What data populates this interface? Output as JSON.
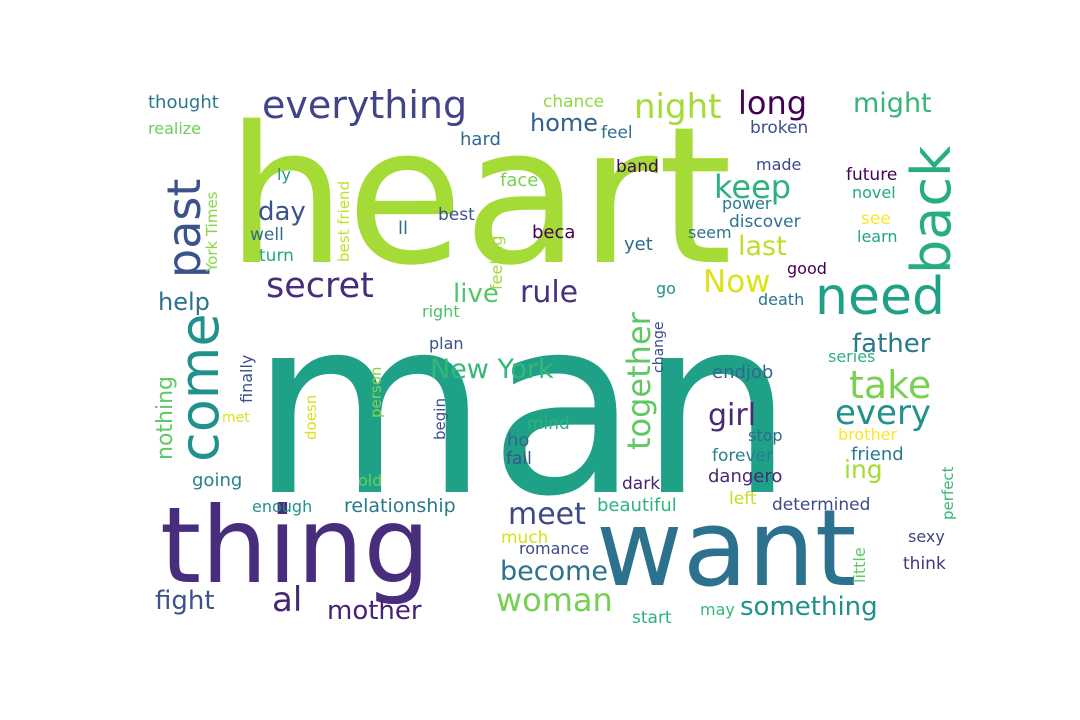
{
  "word_cloud": {
    "words": [
      {
        "text": "heart",
        "color": "#a5db36"
      },
      {
        "text": "man",
        "color": "#1fa187"
      },
      {
        "text": "thing",
        "color": "#472d7b"
      },
      {
        "text": "want",
        "color": "#2c728e"
      },
      {
        "text": "need",
        "color": "#1fa187"
      },
      {
        "text": "everything",
        "color": "#414487"
      },
      {
        "text": "past",
        "color": "#3b528b"
      },
      {
        "text": "come",
        "color": "#21918c"
      },
      {
        "text": "back",
        "color": "#27ad81"
      },
      {
        "text": "secret",
        "color": "#472d7b"
      },
      {
        "text": "night",
        "color": "#a5db36"
      },
      {
        "text": "long",
        "color": "#440154"
      },
      {
        "text": "might",
        "color": "#35b779"
      },
      {
        "text": "keep",
        "color": "#2db27d"
      },
      {
        "text": "take",
        "color": "#7ad151"
      },
      {
        "text": "every",
        "color": "#21918c"
      },
      {
        "text": "together",
        "color": "#5ec962"
      },
      {
        "text": "woman",
        "color": "#75d054"
      },
      {
        "text": "al",
        "color": "#482677"
      },
      {
        "text": "meet",
        "color": "#3e4989"
      },
      {
        "text": "become",
        "color": "#2c728e"
      },
      {
        "text": "something",
        "color": "#21918c"
      },
      {
        "text": "New York",
        "color": "#35b779"
      },
      {
        "text": "girl",
        "color": "#482878"
      },
      {
        "text": "rule",
        "color": "#46327e"
      },
      {
        "text": "Now",
        "color": "#dde318"
      },
      {
        "text": "father",
        "color": "#2a788e"
      },
      {
        "text": "mother",
        "color": "#482173"
      },
      {
        "text": "fight",
        "color": "#3b528b"
      },
      {
        "text": "home",
        "color": "#33638d"
      },
      {
        "text": "day",
        "color": "#3b528b"
      },
      {
        "text": "last",
        "color": "#bddf26"
      },
      {
        "text": "live",
        "color": "#52c569"
      },
      {
        "text": "help",
        "color": "#2c728e"
      },
      {
        "text": "nothing",
        "color": "#5ec962"
      },
      {
        "text": "ing",
        "color": "#a5db36"
      },
      {
        "text": "relationship",
        "color": "#2a788e"
      },
      {
        "text": "going",
        "color": "#26828e"
      },
      {
        "text": "friend",
        "color": "#2a788e"
      },
      {
        "text": "forever",
        "color": "#277f8e"
      },
      {
        "text": "dangero",
        "color": "#482878"
      },
      {
        "text": "beautiful",
        "color": "#2db27d"
      },
      {
        "text": "determined",
        "color": "#3e4989"
      },
      {
        "text": "thought",
        "color": "#2a788e"
      },
      {
        "text": "chance",
        "color": "#8fd744"
      },
      {
        "text": "realize",
        "color": "#6ccd5a"
      },
      {
        "text": "hard",
        "color": "#31688e"
      },
      {
        "text": "feel",
        "color": "#2e6e8e"
      },
      {
        "text": "broken",
        "color": "#3b528b"
      },
      {
        "text": "band",
        "color": "#450559"
      },
      {
        "text": "made",
        "color": "#3e4989"
      },
      {
        "text": "future",
        "color": "#440154"
      },
      {
        "text": "novel",
        "color": "#22a884"
      },
      {
        "text": "face",
        "color": "#75d054"
      },
      {
        "text": "power",
        "color": "#2a788e"
      },
      {
        "text": "discover",
        "color": "#2c728e"
      },
      {
        "text": "see",
        "color": "#fde725"
      },
      {
        "text": "learn",
        "color": "#20a386"
      },
      {
        "text": "seem",
        "color": "#2c728e"
      },
      {
        "text": "yet",
        "color": "#31688e"
      },
      {
        "text": "good",
        "color": "#440154"
      },
      {
        "text": "best",
        "color": "#3b528b"
      },
      {
        "text": "beca",
        "color": "#440154"
      },
      {
        "text": "ll",
        "color": "#2e6e8e"
      },
      {
        "text": "well",
        "color": "#31688e"
      },
      {
        "text": "turn",
        "color": "#22a884"
      },
      {
        "text": "ly",
        "color": "#1f988b"
      },
      {
        "text": "go",
        "color": "#21918c"
      },
      {
        "text": "death",
        "color": "#2c728e"
      },
      {
        "text": "right",
        "color": "#4ac16d"
      },
      {
        "text": "plan",
        "color": "#3b528b"
      },
      {
        "text": "endjob",
        "color": "#31688e"
      },
      {
        "text": "series",
        "color": "#2db27d"
      },
      {
        "text": "mind",
        "color": "#2db27d"
      },
      {
        "text": "ho",
        "color": "#31688e"
      },
      {
        "text": "fall",
        "color": "#3b528b"
      },
      {
        "text": "stop",
        "color": "#31688e"
      },
      {
        "text": "brother",
        "color": "#fde725"
      },
      {
        "text": "dark",
        "color": "#482173"
      },
      {
        "text": "left",
        "color": "#c2df23"
      },
      {
        "text": "enough",
        "color": "#21918c"
      },
      {
        "text": "much",
        "color": "#d8e219"
      },
      {
        "text": "romance",
        "color": "#3e4989"
      },
      {
        "text": "met",
        "color": "#d8e219"
      },
      {
        "text": "old",
        "color": "#6ccd5a"
      },
      {
        "text": "start",
        "color": "#2db27d"
      },
      {
        "text": "may",
        "color": "#35b779"
      },
      {
        "text": "sexy",
        "color": "#414487"
      },
      {
        "text": "think",
        "color": "#46327e"
      },
      {
        "text": "York Times",
        "color": "#86d549"
      },
      {
        "text": "best friend",
        "color": "#c2df23"
      },
      {
        "text": "feeling",
        "color": "#a0da39"
      },
      {
        "text": "finally",
        "color": "#3b528b"
      },
      {
        "text": "doesn",
        "color": "#d8e219"
      },
      {
        "text": "person",
        "color": "#84d44b"
      },
      {
        "text": "begin",
        "color": "#3b528b"
      },
      {
        "text": "change",
        "color": "#3e4989"
      },
      {
        "text": "perfect",
        "color": "#35b779"
      },
      {
        "text": "little",
        "color": "#5ec962"
      }
    ]
  }
}
